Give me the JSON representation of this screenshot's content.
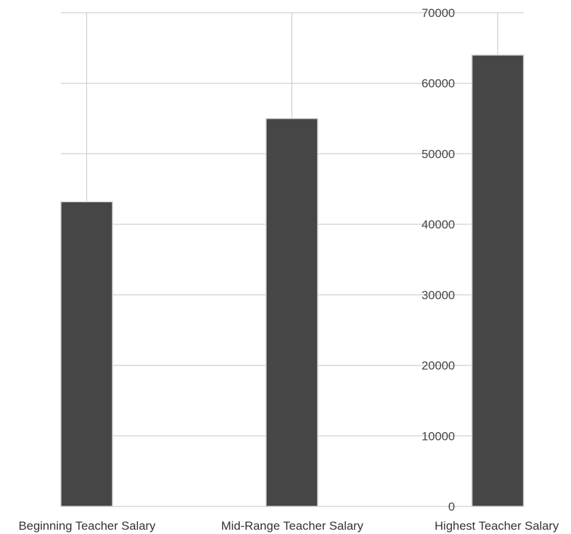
{
  "chart_data": {
    "type": "bar",
    "categories": [
      "Beginning Teacher Salary",
      "Mid-Range Teacher Salary",
      "Highest Teacher Salary"
    ],
    "values": [
      43200,
      55000,
      64000
    ],
    "ylim": [
      0,
      70000
    ],
    "yticks": [
      0,
      10000,
      20000,
      30000,
      40000,
      50000,
      60000,
      70000
    ],
    "grid": true,
    "legend": "none",
    "colors": {
      "bar": "#464646",
      "bar_edge": "#d6d6d6",
      "grid": "#d9d9d9",
      "vline": "#c8c8c8"
    }
  }
}
